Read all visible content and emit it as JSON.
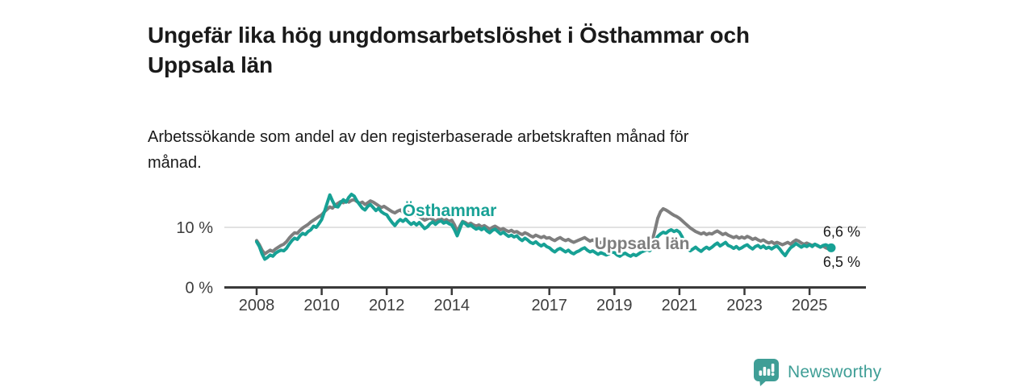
{
  "header": {
    "title": "Ungefär lika hög ungdomsarbetslöshet i Östhammar och Uppsala län",
    "title_lines": [
      "Ungefär lika hög ungdomsarbetslöshet i Östhammar och",
      "Uppsala län"
    ],
    "subtitle": "Arbetssökande som andel av den registerbaserade arbetskraften månad för månad.",
    "subtitle_lines": [
      "Arbetssökande som andel av den registerbaserade arbetskraften månad för",
      "månad."
    ]
  },
  "footer": {
    "brand": "Newsworthy"
  },
  "colors": {
    "accent_teal": "#17a195",
    "series_gray": "#7e7e7e",
    "text_dark": "#1a1a1a",
    "axis_text": "#3d3d3d",
    "axis_line": "#3a3a3a",
    "gridline": "#d9d9d9",
    "logo_teal": "#3f9e96",
    "background": "#ffffff"
  },
  "chart_data": {
    "type": "line",
    "title": "Ungefär lika hög ungdomsarbetslöshet i Östhammar och Uppsala län",
    "subtitle": "Arbetssökande som andel av den registerbaserade arbetskraften månad för månad.",
    "unit": "%",
    "frequency": "monthly",
    "x_start": "2008-01",
    "x_end": "2025-09",
    "x_tick_years": [
      2008,
      2010,
      2012,
      2014,
      2017,
      2019,
      2021,
      2023,
      2025
    ],
    "y_ticks": [
      {
        "value": 0,
        "label": "0 %",
        "gridline": false
      },
      {
        "value": 10,
        "label": "10 %",
        "gridline": true
      }
    ],
    "ylim": [
      0,
      16.5
    ],
    "legend_position": "inline-annotations",
    "grid": "horizontal-only",
    "series": [
      {
        "name": "Uppsala län",
        "color": "#7e7e7e",
        "end_label": "6,5 %",
        "end_dot": false,
        "label_anchor": {
          "year": 2019.85,
          "value": 7.3
        },
        "values": [
          7.8,
          7.1,
          6.2,
          5.6,
          5.9,
          6.2,
          6.0,
          6.4,
          6.7,
          7.0,
          7.2,
          7.6,
          8.2,
          8.7,
          9.1,
          9.0,
          9.5,
          9.9,
          10.2,
          10.5,
          10.9,
          11.2,
          11.5,
          11.8,
          12.1,
          12.6,
          13.0,
          13.4,
          13.2,
          13.7,
          14.0,
          14.3,
          14.1,
          14.4,
          14.2,
          14.5,
          14.6,
          14.3,
          14.0,
          14.2,
          13.8,
          14.1,
          14.4,
          14.2,
          13.9,
          13.6,
          13.3,
          13.5,
          13.2,
          12.9,
          12.6,
          12.4,
          12.7,
          12.9,
          12.5,
          12.8,
          12.4,
          12.1,
          12.3,
          12.0,
          11.8,
          11.5,
          11.2,
          11.4,
          11.6,
          11.3,
          11.0,
          11.3,
          11.5,
          11.1,
          11.3,
          11.0,
          11.2,
          10.4,
          9.3,
          10.2,
          11.0,
          10.8,
          10.5,
          10.7,
          10.4,
          10.2,
          10.4,
          10.1,
          10.3,
          10.0,
          9.7,
          10.0,
          10.2,
          9.9,
          9.6,
          9.8,
          9.5,
          9.3,
          9.5,
          9.2,
          9.3,
          9.0,
          8.8,
          9.1,
          8.9,
          8.6,
          8.4,
          8.7,
          8.5,
          8.3,
          8.5,
          8.2,
          8.3,
          8.0,
          7.8,
          8.1,
          8.3,
          8.0,
          7.8,
          8.0,
          7.7,
          7.5,
          7.7,
          7.9,
          8.1,
          8.3,
          8.0,
          7.7,
          7.9,
          7.6,
          7.3,
          7.5,
          7.3,
          7.1,
          7.3,
          7.5,
          7.3,
          7.0,
          6.8,
          7.0,
          7.2,
          7.0,
          6.8,
          7.0,
          6.9,
          7.1,
          7.3,
          7.5,
          7.4,
          7.2,
          7.8,
          9.6,
          11.5,
          12.6,
          13.1,
          12.9,
          12.6,
          12.3,
          12.0,
          11.8,
          11.5,
          11.1,
          10.7,
          10.3,
          9.9,
          9.6,
          9.3,
          9.1,
          8.9,
          9.1,
          8.8,
          9.0,
          8.9,
          9.2,
          9.4,
          9.1,
          8.8,
          9.0,
          8.7,
          8.5,
          8.3,
          8.5,
          8.2,
          8.4,
          8.2,
          8.5,
          8.3,
          8.0,
          8.2,
          7.9,
          7.7,
          7.9,
          7.6,
          7.4,
          7.6,
          7.3,
          7.5,
          7.3,
          7.1,
          7.3,
          7.5,
          7.2,
          7.6,
          7.9,
          7.7,
          7.4,
          7.2,
          7.4,
          7.2,
          7.0,
          7.2,
          6.9,
          6.7,
          6.9,
          6.6,
          6.4,
          6.5
        ]
      },
      {
        "name": "Östhammar",
        "color": "#17a195",
        "end_label": "6,6 %",
        "end_dot": true,
        "label_anchor": {
          "year": 2013.93,
          "value": 12.8
        },
        "values": [
          7.6,
          6.8,
          5.6,
          4.7,
          5.0,
          5.4,
          5.2,
          5.7,
          6.0,
          6.2,
          6.1,
          6.5,
          7.2,
          7.8,
          8.2,
          8.0,
          8.6,
          9.0,
          8.8,
          9.3,
          9.6,
          10.2,
          10.0,
          10.6,
          11.3,
          12.6,
          14.0,
          15.4,
          14.4,
          13.5,
          13.4,
          14.1,
          14.6,
          14.2,
          15.0,
          15.5,
          15.2,
          14.4,
          13.8,
          13.2,
          12.9,
          13.5,
          13.8,
          13.3,
          12.8,
          13.2,
          12.6,
          12.3,
          12.1,
          11.4,
          10.8,
          10.3,
          10.9,
          11.3,
          11.0,
          11.4,
          10.9,
          10.5,
          10.8,
          10.4,
          10.8,
          10.3,
          9.8,
          10.1,
          10.6,
          10.9,
          10.5,
          10.9,
          11.1,
          10.7,
          10.9,
          10.6,
          10.4,
          9.6,
          8.6,
          9.8,
          10.9,
          10.6,
          10.2,
          10.4,
          10.0,
          9.7,
          9.9,
          9.6,
          9.9,
          9.4,
          9.1,
          9.5,
          9.7,
          9.3,
          8.9,
          9.2,
          8.8,
          8.5,
          8.7,
          8.4,
          8.6,
          8.1,
          7.8,
          8.2,
          7.9,
          7.5,
          7.3,
          7.6,
          7.2,
          6.9,
          7.2,
          6.8,
          6.6,
          6.2,
          5.9,
          6.3,
          6.5,
          6.2,
          5.9,
          6.2,
          5.8,
          5.6,
          5.9,
          6.1,
          6.4,
          6.6,
          6.2,
          5.9,
          6.1,
          5.8,
          5.5,
          5.8,
          5.6,
          5.4,
          5.6,
          5.9,
          5.8,
          5.4,
          5.2,
          5.5,
          5.7,
          5.4,
          5.2,
          5.5,
          5.3,
          5.6,
          5.9,
          6.1,
          6.3,
          6.1,
          6.6,
          7.8,
          8.5,
          8.9,
          9.2,
          9.0,
          9.4,
          9.6,
          9.3,
          9.5,
          9.2,
          8.4,
          7.2,
          6.4,
          6.1,
          6.4,
          6.7,
          6.3,
          6.0,
          6.4,
          6.7,
          6.4,
          6.7,
          7.1,
          7.4,
          6.9,
          7.2,
          7.5,
          7.0,
          6.8,
          6.5,
          6.8,
          6.4,
          6.6,
          6.9,
          7.1,
          6.7,
          6.4,
          6.8,
          7.0,
          6.6,
          6.9,
          6.5,
          6.7,
          6.4,
          6.7,
          6.9,
          6.4,
          5.8,
          5.3,
          6.0,
          6.6,
          6.9,
          7.3,
          7.0,
          6.7,
          7.0,
          6.8,
          7.1,
          6.8,
          7.2,
          7.0,
          6.7,
          7.0,
          7.1,
          6.9,
          6.6
        ]
      }
    ]
  }
}
